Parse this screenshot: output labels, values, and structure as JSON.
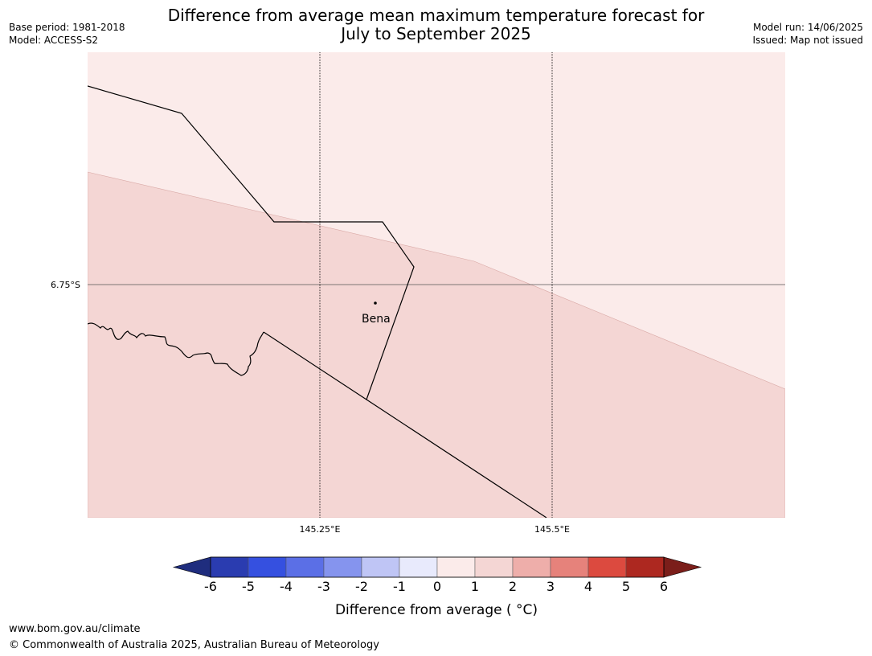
{
  "header": {
    "title_line1": "Difference from average mean maximum temperature forecast for",
    "title_line2": "July to September 2025",
    "base_period": "Base period: 1981-2018",
    "model": "Model: ACCESS-S2",
    "model_run": "Model run: 14/06/2025",
    "issued": "Issued: Map not issued"
  },
  "map": {
    "lat_label": "6.75°S",
    "lon_labels": [
      "145.25°E",
      "145.5°E"
    ],
    "place_label": "Bena",
    "colors": {
      "zone_0_1": "#fbebea",
      "zone_1_2": "#f4d6d4",
      "outline": "#000000",
      "gridline": "#555555"
    }
  },
  "colorbar": {
    "title": "Difference from average ( °C)",
    "tick_labels": [
      "-6",
      "-5",
      "-4",
      "-3",
      "-2",
      "-1",
      "0",
      "1",
      "2",
      "3",
      "4",
      "5",
      "6"
    ],
    "bins": [
      {
        "range": "<-6",
        "color": "#1f2d7e"
      },
      {
        "range": "-6 to -5",
        "color": "#2a3cb0"
      },
      {
        "range": "-5 to -4",
        "color": "#3550e0"
      },
      {
        "range": "-4 to -3",
        "color": "#5b6fe6"
      },
      {
        "range": "-3 to -2",
        "color": "#8594ee"
      },
      {
        "range": "-2 to -1",
        "color": "#bfc5f5"
      },
      {
        "range": "-1 to 0",
        "color": "#e8eafc"
      },
      {
        "range": "0 to 1",
        "color": "#fbebea"
      },
      {
        "range": "1 to 2",
        "color": "#f4d6d4"
      },
      {
        "range": "2 to 3",
        "color": "#eeaeaa"
      },
      {
        "range": "3 to 4",
        "color": "#e6827b"
      },
      {
        "range": "4 to 5",
        "color": "#dc4a3f"
      },
      {
        "range": "5 to 6",
        "color": "#ad2820"
      },
      {
        "range": ">6",
        "color": "#7b1e1a"
      }
    ]
  },
  "footer": {
    "url": "www.bom.gov.au/climate",
    "copyright": "© Commonwealth of Australia 2025, Australian Bureau of Meteorology"
  }
}
